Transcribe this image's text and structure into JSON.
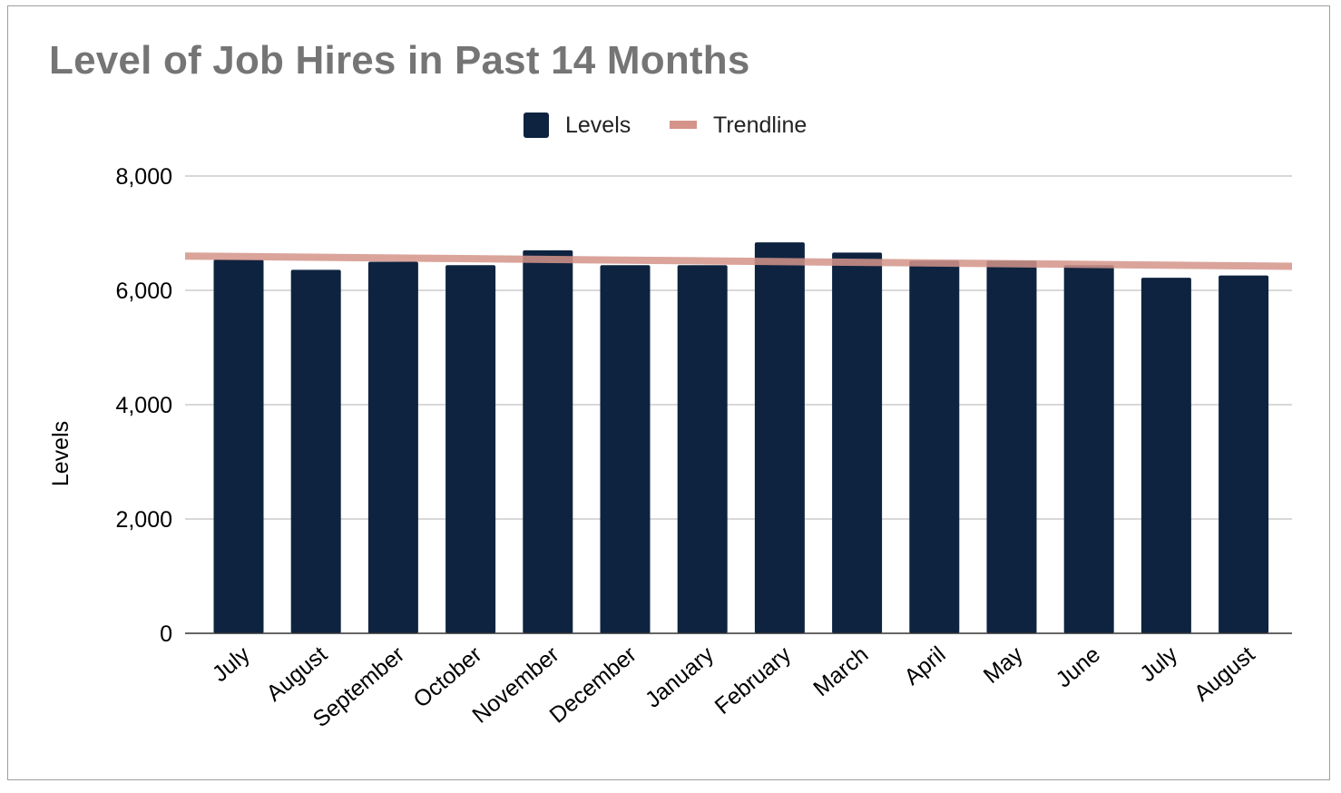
{
  "chart_data": {
    "type": "bar",
    "title": "Level of Job Hires in Past 14 Months",
    "xlabel": "",
    "ylabel": "Levels",
    "ylim": [
      0,
      8000
    ],
    "yticks": [
      0,
      2000,
      4000,
      6000,
      8000
    ],
    "ytick_labels": [
      "0",
      "2,000",
      "4,000",
      "6,000",
      "8,000"
    ],
    "grid": true,
    "legend_position": "top-center",
    "categories": [
      "July",
      "August",
      "September",
      "October",
      "November",
      "December",
      "January",
      "February",
      "March",
      "April",
      "May",
      "June",
      "July",
      "August"
    ],
    "series": [
      {
        "name": "Levels",
        "color": "#0e2340",
        "values": [
          6540,
          6360,
          6500,
          6440,
          6700,
          6440,
          6440,
          6840,
          6660,
          6520,
          6520,
          6440,
          6220,
          6260
        ]
      }
    ],
    "trendline": {
      "name": "Trendline",
      "color": "#d4948a",
      "start": 6600,
      "end": 6420
    }
  }
}
